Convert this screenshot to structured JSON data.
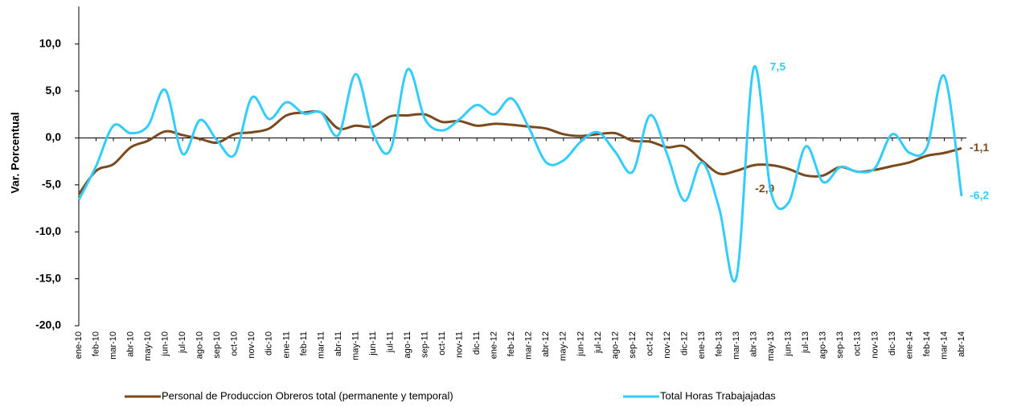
{
  "chart_data": {
    "type": "line",
    "y_label": "Var. Porcentual",
    "categories": [
      "ene-10",
      "feb-10",
      "mar-10",
      "abr-10",
      "may-10",
      "jun-10",
      "jul-10",
      "ago-10",
      "sep-10",
      "oct-10",
      "nov-10",
      "dic-10",
      "ene-11",
      "feb-11",
      "mar-11",
      "abr-11",
      "may-11",
      "jun-11",
      "jul-11",
      "ago-11",
      "sep-11",
      "oct-11",
      "nov-11",
      "dic-11",
      "ene-12",
      "feb-12",
      "mar-12",
      "abr-12",
      "may-12",
      "jun-12",
      "jul-12",
      "ago-12",
      "sep-12",
      "oct-12",
      "nov-12",
      "dic-12",
      "ene-13",
      "feb-13",
      "mar-13",
      "abr-13",
      "may-13",
      "jun-13",
      "jul-13",
      "ago-13",
      "sep-13",
      "oct-13",
      "nov-13",
      "dic-13",
      "ene-14",
      "feb-14",
      "mar-14",
      "abr-14"
    ],
    "series": [
      {
        "name": "Personal de Produccion Obreros total (permanente y temporal)",
        "color": "#7b4a1c",
        "values": [
          -6.0,
          -3.5,
          -2.8,
          -1.0,
          -0.3,
          0.7,
          0.3,
          -0.1,
          -0.5,
          0.4,
          0.6,
          1.0,
          2.4,
          2.7,
          2.7,
          1.0,
          1.3,
          1.2,
          2.3,
          2.4,
          2.5,
          1.7,
          1.8,
          1.3,
          1.5,
          1.4,
          1.2,
          1.0,
          0.4,
          0.2,
          0.4,
          0.5,
          -0.3,
          -0.4,
          -1.0,
          -0.9,
          -2.4,
          -3.8,
          -3.5,
          -2.9,
          -2.9,
          -3.3,
          -4.0,
          -4.0,
          -3.1,
          -3.6,
          -3.4,
          -3.0,
          -2.6,
          -1.9,
          -1.6,
          -1.1
        ],
        "value_labels": [
          null,
          null,
          null,
          null,
          null,
          null,
          null,
          null,
          null,
          null,
          null,
          null,
          null,
          null,
          null,
          null,
          null,
          null,
          null,
          null,
          null,
          null,
          null,
          null,
          null,
          null,
          null,
          null,
          null,
          null,
          null,
          null,
          null,
          null,
          null,
          null,
          null,
          null,
          null,
          null,
          "-2,9",
          null,
          null,
          null,
          null,
          null,
          null,
          null,
          null,
          null,
          null,
          "-1,1"
        ]
      },
      {
        "name": "Total Horas Trabajajadas",
        "color": "#33ccff",
        "values": [
          -6.6,
          -3.0,
          1.3,
          0.5,
          1.3,
          5.1,
          -1.7,
          1.9,
          -0.3,
          -1.8,
          4.3,
          2.0,
          3.8,
          2.6,
          2.7,
          0.3,
          6.8,
          0.5,
          -1.3,
          7.3,
          2.0,
          0.8,
          2.0,
          3.5,
          2.5,
          4.2,
          1.1,
          -2.6,
          -2.4,
          -0.4,
          0.6,
          -1.5,
          -3.6,
          2.4,
          -1.8,
          -6.7,
          -2.6,
          -7.5,
          -14.8,
          7.5,
          -5.8,
          -6.9,
          -0.9,
          -4.7,
          -3.1,
          -3.6,
          -3.2,
          0.4,
          -1.6,
          -1.0,
          6.6,
          -6.2
        ],
        "value_labels": [
          null,
          null,
          null,
          null,
          null,
          null,
          null,
          null,
          null,
          null,
          null,
          null,
          null,
          null,
          null,
          null,
          null,
          null,
          null,
          null,
          null,
          null,
          null,
          null,
          null,
          null,
          null,
          null,
          null,
          null,
          null,
          null,
          null,
          null,
          null,
          null,
          null,
          null,
          null,
          "7,5",
          null,
          null,
          null,
          null,
          null,
          null,
          null,
          null,
          null,
          null,
          null,
          "-6,2"
        ]
      }
    ],
    "ylim": [
      -20,
      14
    ],
    "yticks": [
      {
        "value": -20,
        "label": "-20,0"
      },
      {
        "value": -15,
        "label": "-15,0"
      },
      {
        "value": -10,
        "label": "-10,0"
      },
      {
        "value": -5,
        "label": "-5,0"
      },
      {
        "value": 0,
        "label": "0,0"
      },
      {
        "value": 5,
        "label": "5,0"
      },
      {
        "value": 10,
        "label": "10,0"
      }
    ],
    "grid": false,
    "legend": "bottom"
  }
}
